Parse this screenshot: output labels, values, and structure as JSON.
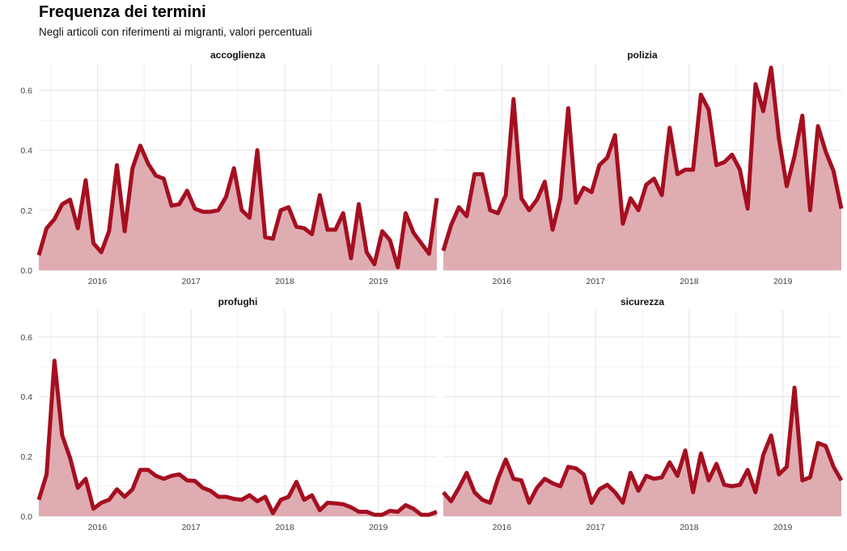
{
  "chart_data": {
    "type": "area",
    "title": "Frequenza dei termini",
    "subtitle": "Negli articoli con riferimenti ai migranti, valori percentuali",
    "x_start": "2015-05",
    "x_end": "2019-08",
    "frequency": "monthly",
    "x_ticks": [
      "2016",
      "2017",
      "2018",
      "2019"
    ],
    "y_ticks": [
      "0.0",
      "0.2",
      "0.4",
      "0.6"
    ],
    "ylim": [
      0,
      0.69
    ],
    "grid": true,
    "line_color": "#a50f20",
    "fill_color": "#dfacb2",
    "panels": [
      {
        "name": "accoglienza",
        "values": [
          0.05,
          0.14,
          0.17,
          0.22,
          0.235,
          0.14,
          0.3,
          0.09,
          0.06,
          0.13,
          0.35,
          0.13,
          0.34,
          0.415,
          0.355,
          0.315,
          0.305,
          0.215,
          0.22,
          0.265,
          0.205,
          0.195,
          0.195,
          0.2,
          0.245,
          0.34,
          0.2,
          0.175,
          0.4,
          0.11,
          0.105,
          0.2,
          0.21,
          0.145,
          0.14,
          0.12,
          0.25,
          0.135,
          0.135,
          0.19,
          0.04,
          0.22,
          0.06,
          0.02,
          0.13,
          0.1,
          0.01,
          0.19,
          0.125,
          0.09,
          0.055,
          0.24
        ]
      },
      {
        "name": "polizia",
        "values": [
          0.065,
          0.15,
          0.21,
          0.18,
          0.32,
          0.32,
          0.2,
          0.19,
          0.25,
          0.57,
          0.24,
          0.2,
          0.235,
          0.295,
          0.135,
          0.24,
          0.54,
          0.225,
          0.275,
          0.26,
          0.35,
          0.375,
          0.45,
          0.155,
          0.24,
          0.2,
          0.285,
          0.305,
          0.25,
          0.475,
          0.32,
          0.335,
          0.335,
          0.585,
          0.535,
          0.35,
          0.36,
          0.385,
          0.335,
          0.205,
          0.62,
          0.53,
          0.675,
          0.44,
          0.28,
          0.38,
          0.515,
          0.2,
          0.48,
          0.395,
          0.33,
          0.205
        ]
      },
      {
        "name": "profughi",
        "values": [
          0.055,
          0.14,
          0.52,
          0.27,
          0.195,
          0.095,
          0.125,
          0.025,
          0.045,
          0.055,
          0.09,
          0.065,
          0.09,
          0.155,
          0.155,
          0.135,
          0.125,
          0.135,
          0.14,
          0.12,
          0.118,
          0.095,
          0.085,
          0.065,
          0.065,
          0.058,
          0.055,
          0.07,
          0.05,
          0.065,
          0.01,
          0.055,
          0.065,
          0.115,
          0.055,
          0.07,
          0.02,
          0.045,
          0.043,
          0.04,
          0.03,
          0.015,
          0.015,
          0.005,
          0.005,
          0.018,
          0.015,
          0.037,
          0.025,
          0.005,
          0.005,
          0.015
        ]
      },
      {
        "name": "sicurezza",
        "values": [
          0.08,
          0.05,
          0.095,
          0.145,
          0.08,
          0.055,
          0.045,
          0.125,
          0.19,
          0.125,
          0.12,
          0.045,
          0.095,
          0.125,
          0.11,
          0.1,
          0.165,
          0.16,
          0.14,
          0.045,
          0.09,
          0.105,
          0.08,
          0.045,
          0.145,
          0.085,
          0.135,
          0.125,
          0.13,
          0.18,
          0.135,
          0.22,
          0.08,
          0.21,
          0.12,
          0.175,
          0.105,
          0.1,
          0.105,
          0.155,
          0.08,
          0.205,
          0.27,
          0.14,
          0.165,
          0.43,
          0.12,
          0.13,
          0.245,
          0.235,
          0.165,
          0.12
        ]
      }
    ]
  }
}
